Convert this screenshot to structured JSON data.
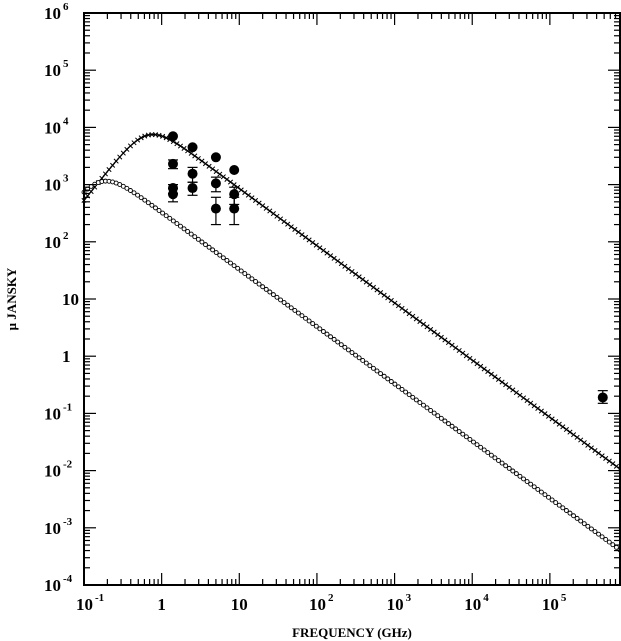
{
  "chart_data": {
    "type": "scatter",
    "title": "",
    "xlabel": "FREQUENCY (GHz)",
    "ylabel": "μ JANSKY",
    "x_scale": "log",
    "y_scale": "log",
    "xlim": [
      0.1,
      800000
    ],
    "ylim": [
      0.0001,
      1000000
    ],
    "grid": false,
    "legend": "none",
    "x_ticks": [
      {
        "base": "10",
        "exp": "-1"
      },
      {
        "base": "1",
        "exp": ""
      },
      {
        "base": "10",
        "exp": ""
      },
      {
        "base": "10",
        "exp": "2"
      },
      {
        "base": "10",
        "exp": "3"
      },
      {
        "base": "10",
        "exp": "4"
      },
      {
        "base": "10",
        "exp": "5"
      }
    ],
    "y_ticks": [
      {
        "base": "10",
        "exp": "-4"
      },
      {
        "base": "10",
        "exp": "-3"
      },
      {
        "base": "10",
        "exp": "-2"
      },
      {
        "base": "10",
        "exp": "-1"
      },
      {
        "base": "1",
        "exp": ""
      },
      {
        "base": "10",
        "exp": ""
      },
      {
        "base": "10",
        "exp": "2"
      },
      {
        "base": "10",
        "exp": "3"
      },
      {
        "base": "10",
        "exp": "4"
      },
      {
        "base": "10",
        "exp": "5"
      },
      {
        "base": "10",
        "exp": "6"
      }
    ],
    "curves": [
      {
        "marker": "cross",
        "peak_freq_ghz": 0.8,
        "peak_flux": 7500,
        "low_freq_slope": 1.7,
        "high_freq_slope": -1.0
      },
      {
        "marker": "circle-open",
        "peak_freq_ghz": 0.2,
        "peak_flux": 1150,
        "low_freq_slope": 1.7,
        "high_freq_slope": -1.0
      }
    ],
    "points": [
      {
        "x": 1.4,
        "y": 7000,
        "err_low": null,
        "err_high": null
      },
      {
        "x": 2.5,
        "y": 4500,
        "err_low": null,
        "err_high": null
      },
      {
        "x": 5.0,
        "y": 3000,
        "err_low": null,
        "err_high": null
      },
      {
        "x": 8.6,
        "y": 1800,
        "err_low": null,
        "err_high": null
      },
      {
        "x": 1.4,
        "y": 2300,
        "err_low": 1900,
        "err_high": 2700
      },
      {
        "x": 1.4,
        "y": 870,
        "err_low": 700,
        "err_high": 1000
      },
      {
        "x": 1.4,
        "y": 680,
        "err_low": 500,
        "err_high": 850
      },
      {
        "x": 2.5,
        "y": 1550,
        "err_low": 1100,
        "err_high": 2000
      },
      {
        "x": 2.5,
        "y": 870,
        "err_low": 650,
        "err_high": 1100
      },
      {
        "x": 5.0,
        "y": 1050,
        "err_low": 750,
        "err_high": 1350
      },
      {
        "x": 5.0,
        "y": 380,
        "err_low": 200,
        "err_high": 600
      },
      {
        "x": 8.6,
        "y": 680,
        "err_low": 450,
        "err_high": 900
      },
      {
        "x": 8.6,
        "y": 380,
        "err_low": 200,
        "err_high": 600
      },
      {
        "x": 480000,
        "y": 0.19,
        "err_low": 0.15,
        "err_high": 0.25
      }
    ]
  }
}
